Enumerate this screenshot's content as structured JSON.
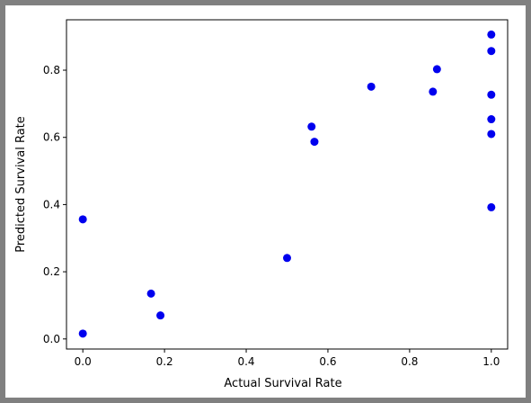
{
  "chart_data": {
    "type": "scatter",
    "xlabel": "Actual Survival Rate",
    "ylabel": "Predicted Survival Rate",
    "xlim": [
      -0.04,
      1.04
    ],
    "ylim": [
      -0.03,
      0.95
    ],
    "x_ticks": [
      "0.0",
      "0.2",
      "0.4",
      "0.6",
      "0.8",
      "1.0"
    ],
    "y_ticks": [
      "0.0",
      "0.2",
      "0.4",
      "0.6",
      "0.8"
    ],
    "grid": false,
    "marker_color": "#0000ee",
    "points": [
      {
        "x": 0.0,
        "y": 0.016
      },
      {
        "x": 0.0,
        "y": 0.356
      },
      {
        "x": 0.167,
        "y": 0.135
      },
      {
        "x": 0.19,
        "y": 0.07
      },
      {
        "x": 0.5,
        "y": 0.241
      },
      {
        "x": 0.56,
        "y": 0.632
      },
      {
        "x": 0.567,
        "y": 0.587
      },
      {
        "x": 0.706,
        "y": 0.751
      },
      {
        "x": 0.857,
        "y": 0.736
      },
      {
        "x": 0.867,
        "y": 0.803
      },
      {
        "x": 1.0,
        "y": 0.906
      },
      {
        "x": 1.0,
        "y": 0.857
      },
      {
        "x": 1.0,
        "y": 0.727
      },
      {
        "x": 1.0,
        "y": 0.654
      },
      {
        "x": 1.0,
        "y": 0.61
      },
      {
        "x": 1.0,
        "y": 0.392
      }
    ]
  }
}
